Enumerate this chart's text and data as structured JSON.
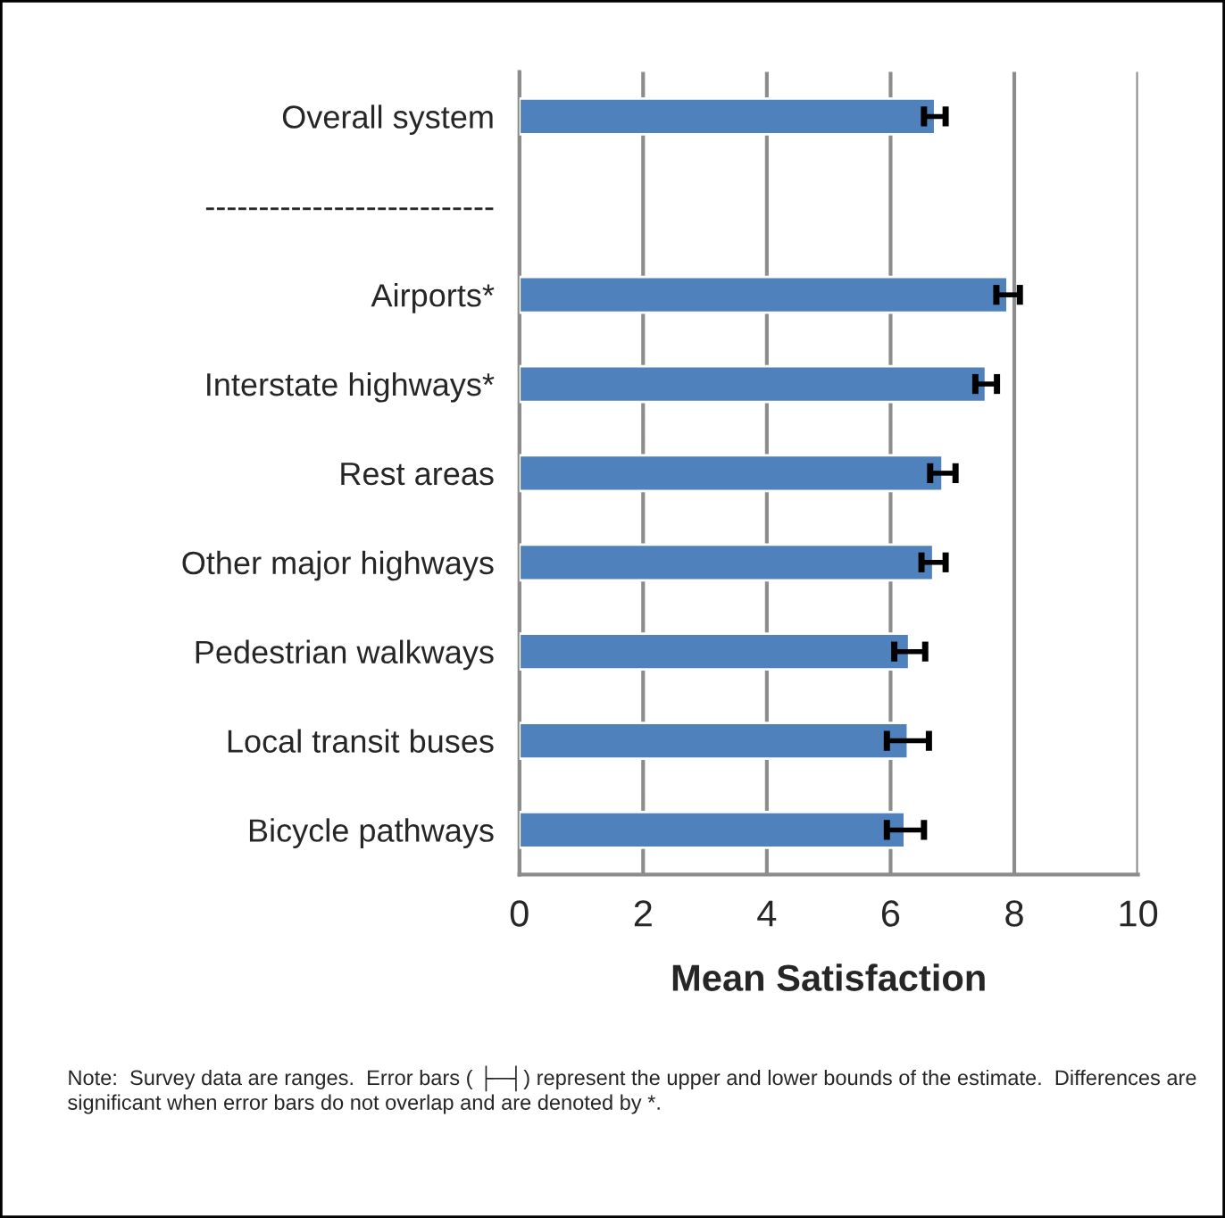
{
  "chart_data": {
    "type": "bar",
    "orientation": "horizontal",
    "xlabel": "Mean Satisfaction",
    "categories": [
      "Overall system",
      "---------------------------",
      "Airports*",
      "Interstate highways*",
      "Rest areas",
      "Other major highways",
      "Pedestrian walkways",
      "Local transit buses",
      "Bicycle pathways"
    ],
    "values": [
      6.72,
      null,
      7.89,
      7.54,
      6.84,
      6.69,
      6.3,
      6.28,
      6.23
    ],
    "errors": [
      [
        6.54,
        6.89
      ],
      null,
      [
        7.71,
        8.09
      ],
      [
        7.37,
        7.72
      ],
      [
        6.64,
        7.05
      ],
      [
        6.5,
        6.89
      ],
      [
        6.06,
        6.56
      ],
      [
        5.94,
        6.62
      ],
      [
        5.94,
        6.54
      ]
    ],
    "color": "#4f81bd",
    "xlim": [
      0,
      10
    ],
    "xticks": [
      0,
      2,
      4,
      6,
      8,
      10
    ],
    "grid": "x",
    "annotations": [
      "Note:  Survey data are ranges.  Error bars ( ├─┤) represent the upper and lower bounds of the estimate.  Differences are significant when error bars do not overlap and are denoted by *."
    ]
  }
}
